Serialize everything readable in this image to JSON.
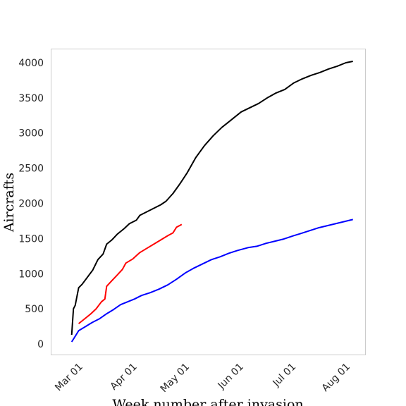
{
  "chart_data": {
    "type": "line",
    "title": "",
    "xlabel": "Week number after invasion",
    "ylabel": "Aircrafts",
    "x_tick_labels": [
      "Mar 01",
      "Apr 01",
      "May 01",
      "Jun 01",
      "Jul 01",
      "Aug 01"
    ],
    "x_tick_dates": [
      "2022-03-01",
      "2022-04-01",
      "2022-05-01",
      "2022-06-01",
      "2022-07-01",
      "2022-08-01"
    ],
    "xlim": [
      "2022-02-12",
      "2022-08-11"
    ],
    "y_tick_labels": [
      "0",
      "500",
      "1000",
      "1500",
      "2000",
      "2500",
      "3000",
      "3500",
      "4000"
    ],
    "y_ticks": [
      0,
      500,
      1000,
      1500,
      2000,
      2500,
      3000,
      3500,
      4000
    ],
    "ylim": [
      -150,
      4200
    ],
    "grid": false,
    "legend": null,
    "series": [
      {
        "color": "#000000",
        "points": [
          [
            "2022-02-24",
            130
          ],
          [
            "2022-02-25",
            500
          ],
          [
            "2022-02-26",
            550
          ],
          [
            "2022-02-28",
            800
          ],
          [
            "2022-03-02",
            850
          ],
          [
            "2022-03-05",
            950
          ],
          [
            "2022-03-08",
            1050
          ],
          [
            "2022-03-11",
            1200
          ],
          [
            "2022-03-14",
            1280
          ],
          [
            "2022-03-16",
            1420
          ],
          [
            "2022-03-19",
            1480
          ],
          [
            "2022-03-22",
            1560
          ],
          [
            "2022-03-26",
            1640
          ],
          [
            "2022-03-29",
            1710
          ],
          [
            "2022-04-02",
            1760
          ],
          [
            "2022-04-04",
            1830
          ],
          [
            "2022-04-08",
            1880
          ],
          [
            "2022-04-12",
            1930
          ],
          [
            "2022-04-16",
            1980
          ],
          [
            "2022-04-19",
            2030
          ],
          [
            "2022-04-23",
            2140
          ],
          [
            "2022-04-27",
            2280
          ],
          [
            "2022-05-01",
            2430
          ],
          [
            "2022-05-06",
            2650
          ],
          [
            "2022-05-11",
            2820
          ],
          [
            "2022-05-16",
            2960
          ],
          [
            "2022-05-21",
            3080
          ],
          [
            "2022-05-26",
            3180
          ],
          [
            "2022-06-01",
            3300
          ],
          [
            "2022-06-06",
            3360
          ],
          [
            "2022-06-11",
            3420
          ],
          [
            "2022-06-16",
            3500
          ],
          [
            "2022-06-21",
            3570
          ],
          [
            "2022-06-26",
            3620
          ],
          [
            "2022-07-01",
            3710
          ],
          [
            "2022-07-06",
            3770
          ],
          [
            "2022-07-11",
            3820
          ],
          [
            "2022-07-16",
            3860
          ],
          [
            "2022-07-21",
            3910
          ],
          [
            "2022-07-26",
            3950
          ],
          [
            "2022-07-31",
            4000
          ],
          [
            "2022-08-04",
            4020
          ]
        ]
      },
      {
        "color": "#ff0000",
        "points": [
          [
            "2022-02-28",
            290
          ],
          [
            "2022-03-01",
            310
          ],
          [
            "2022-03-04",
            370
          ],
          [
            "2022-03-07",
            430
          ],
          [
            "2022-03-10",
            500
          ],
          [
            "2022-03-13",
            600
          ],
          [
            "2022-03-15",
            640
          ],
          [
            "2022-03-16",
            820
          ],
          [
            "2022-03-19",
            900
          ],
          [
            "2022-03-22",
            980
          ],
          [
            "2022-03-25",
            1060
          ],
          [
            "2022-03-27",
            1150
          ],
          [
            "2022-03-31",
            1210
          ],
          [
            "2022-04-04",
            1300
          ],
          [
            "2022-04-08",
            1360
          ],
          [
            "2022-04-12",
            1420
          ],
          [
            "2022-04-16",
            1480
          ],
          [
            "2022-04-20",
            1540
          ],
          [
            "2022-04-23",
            1580
          ],
          [
            "2022-04-25",
            1660
          ],
          [
            "2022-04-28",
            1700
          ]
        ]
      },
      {
        "color": "#0000ff",
        "points": [
          [
            "2022-02-24",
            30
          ],
          [
            "2022-02-26",
            110
          ],
          [
            "2022-02-28",
            190
          ],
          [
            "2022-03-04",
            250
          ],
          [
            "2022-03-08",
            310
          ],
          [
            "2022-03-12",
            360
          ],
          [
            "2022-03-16",
            430
          ],
          [
            "2022-03-20",
            490
          ],
          [
            "2022-03-24",
            560
          ],
          [
            "2022-03-28",
            600
          ],
          [
            "2022-04-01",
            640
          ],
          [
            "2022-04-05",
            690
          ],
          [
            "2022-04-10",
            730
          ],
          [
            "2022-04-15",
            780
          ],
          [
            "2022-04-20",
            840
          ],
          [
            "2022-04-25",
            920
          ],
          [
            "2022-04-30",
            1010
          ],
          [
            "2022-05-05",
            1080
          ],
          [
            "2022-05-10",
            1140
          ],
          [
            "2022-05-15",
            1200
          ],
          [
            "2022-05-20",
            1240
          ],
          [
            "2022-05-25",
            1290
          ],
          [
            "2022-05-30",
            1330
          ],
          [
            "2022-06-05",
            1370
          ],
          [
            "2022-06-10",
            1390
          ],
          [
            "2022-06-15",
            1430
          ],
          [
            "2022-06-20",
            1460
          ],
          [
            "2022-06-25",
            1490
          ],
          [
            "2022-07-01",
            1540
          ],
          [
            "2022-07-05",
            1570
          ],
          [
            "2022-07-10",
            1610
          ],
          [
            "2022-07-15",
            1650
          ],
          [
            "2022-07-20",
            1680
          ],
          [
            "2022-07-25",
            1710
          ],
          [
            "2022-07-30",
            1740
          ],
          [
            "2022-08-04",
            1770
          ]
        ]
      }
    ]
  }
}
